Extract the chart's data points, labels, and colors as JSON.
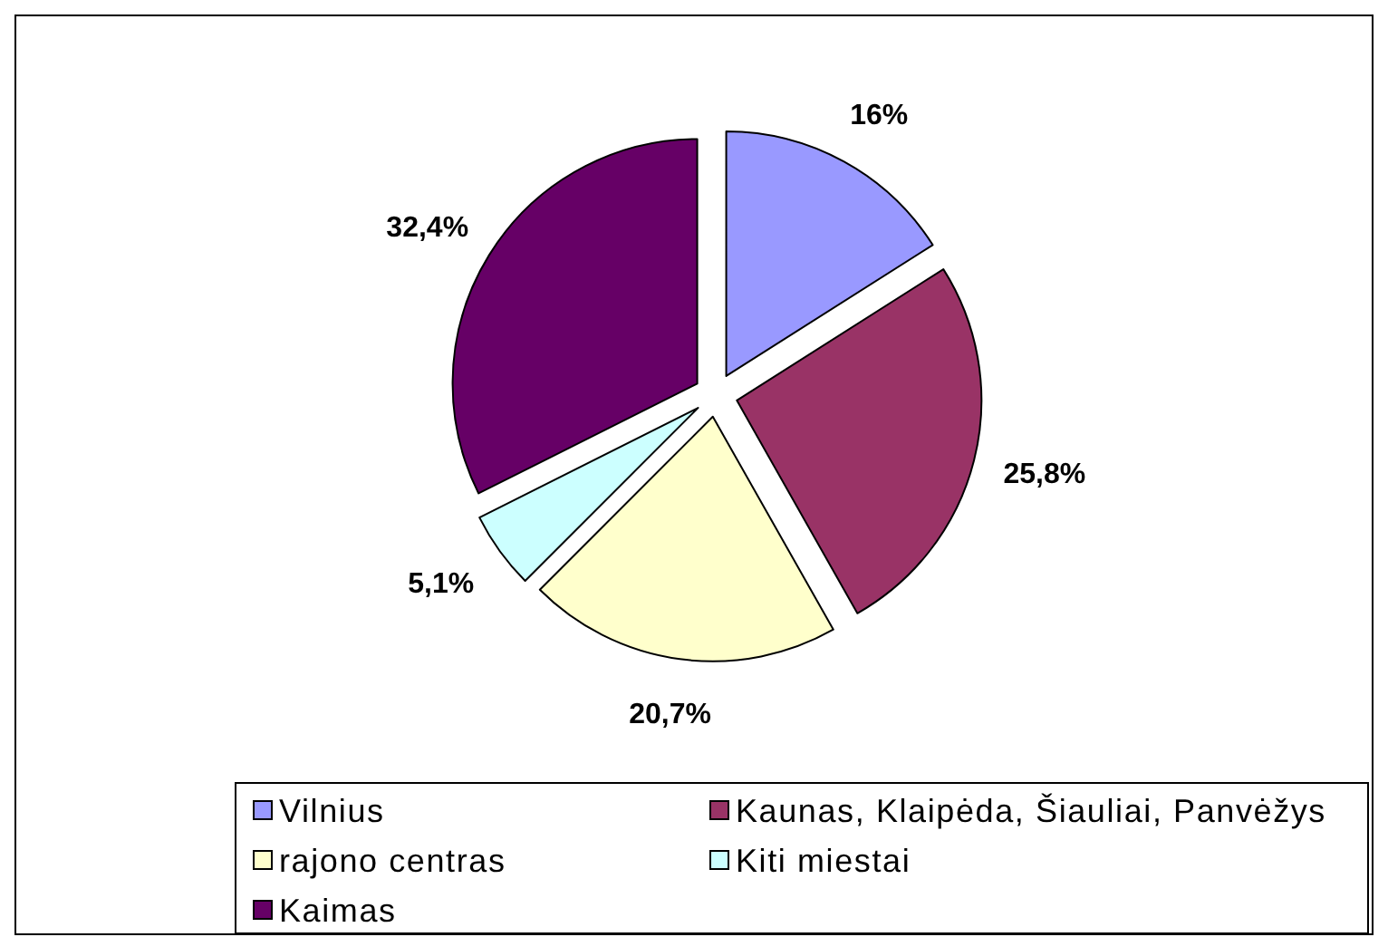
{
  "chart_data": {
    "type": "pie",
    "categories": [
      "Vilnius",
      "Kaunas, Klaipėda, Šiauliai, Panvėžys",
      "rajono centras",
      "Kiti miestai",
      "Kaimas"
    ],
    "values": [
      16,
      25.8,
      20.7,
      5.1,
      32.4
    ],
    "colors": [
      "#9999ff",
      "#993366",
      "#ffffcc",
      "#ccffff",
      "#660066"
    ],
    "value_labels": [
      "16%",
      "25,8%",
      "20,7%",
      "5,1%",
      "32,4%"
    ],
    "legend": "bottom"
  }
}
